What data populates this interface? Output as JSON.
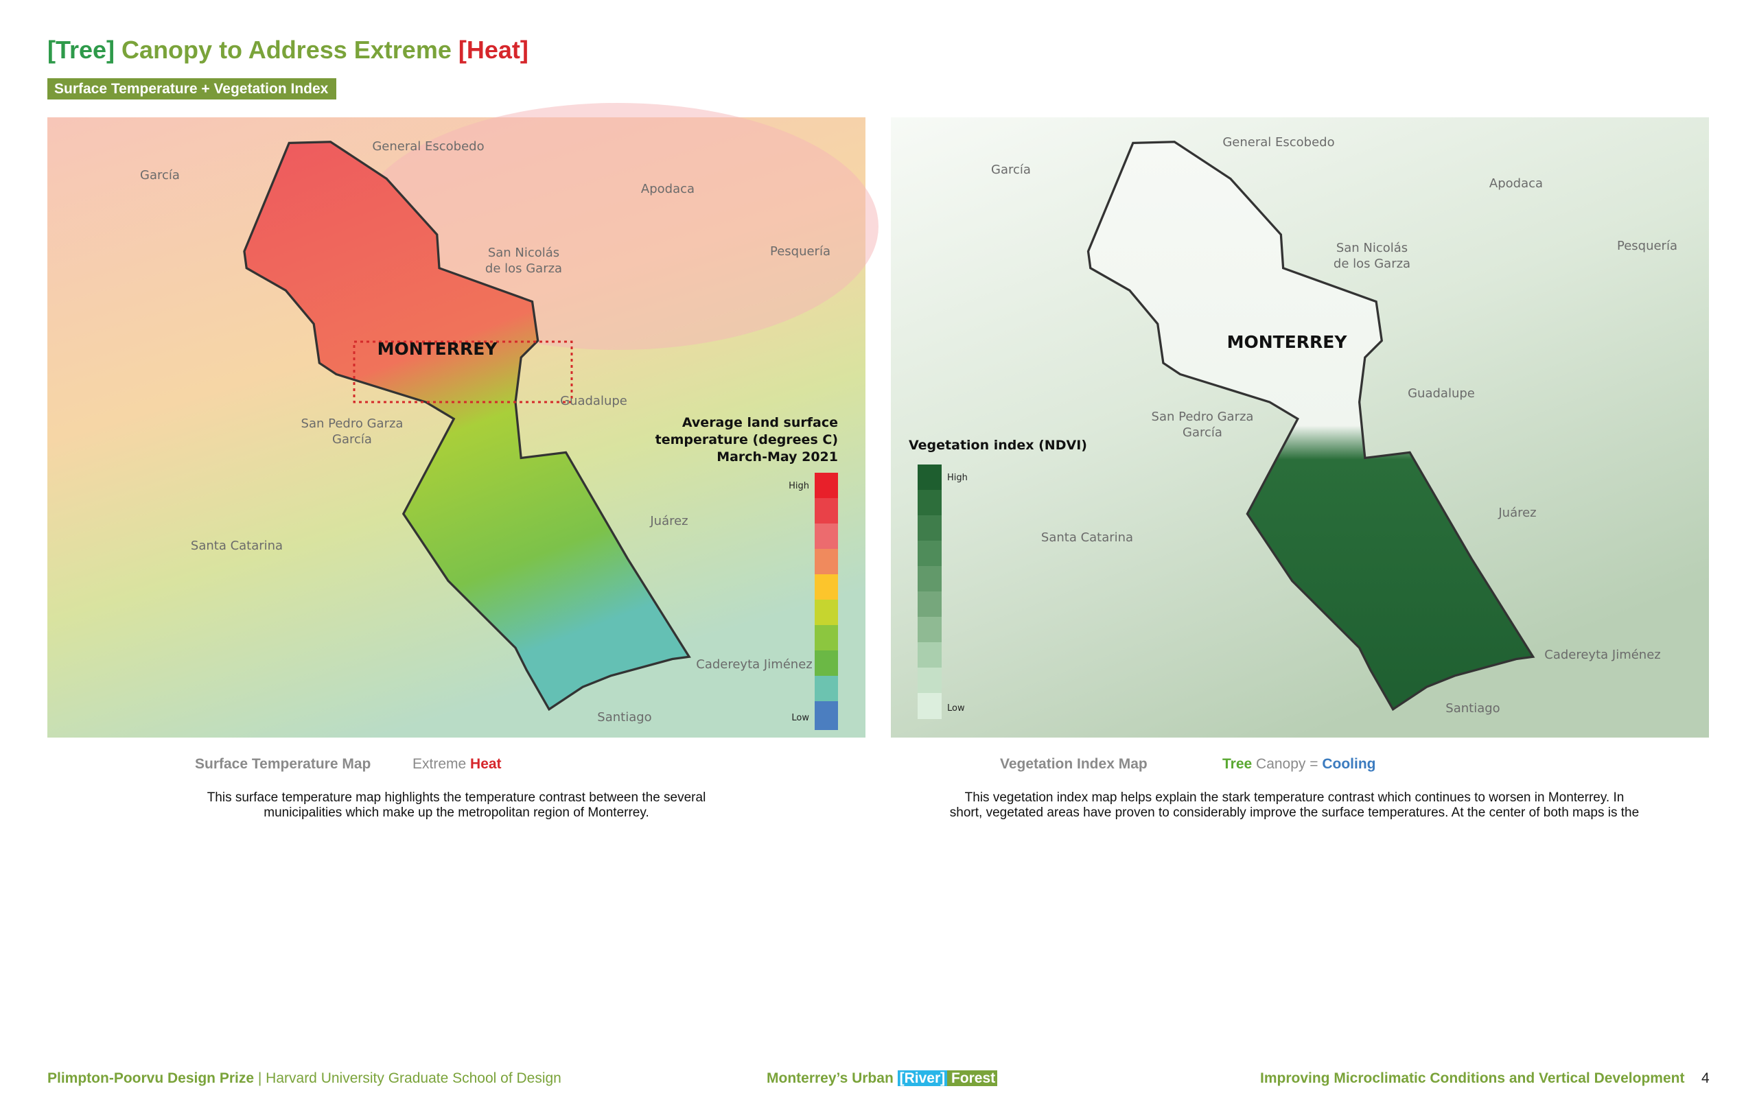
{
  "header": {
    "title": {
      "tree": "[Tree]",
      "middle": " Canopy to Address Extreme ",
      "heat": "[Heat]"
    },
    "tag": "Surface Temperature + Vegetation Index"
  },
  "maps": [
    {
      "labels": {
        "escobedo": "General Escobedo",
        "garcia": "García",
        "apodaca": "Apodaca",
        "san_nicolas": [
          "San Nicolás",
          "de los Garza"
        ],
        "pesqueria": "Pesquería",
        "monterrey": "MONTERREY",
        "guadalupe": "Guadalupe",
        "san_pedro": [
          "San Pedro Garza",
          "García"
        ],
        "juarez": "Juárez",
        "santa_catarina": "Santa Catarina",
        "cadereyta": "Cadereyta Jiménez",
        "santiago": "Santiago"
      },
      "legend": {
        "title": [
          "Average land surface",
          "temperature (degrees C)",
          "March-May 2021"
        ],
        "high": "High",
        "low": "Low"
      },
      "caption": {
        "name": "Surface Temperature Map",
        "extra": "Extreme ",
        "emphasis": "Heat"
      },
      "description": [
        "This surface temperature map highlights the temperature contrast between the several",
        "municipalities which make up the metropolitan region of Monterrey."
      ]
    },
    {
      "labels": {
        "escobedo": "General Escobedo",
        "garcia": "García",
        "apodaca": "Apodaca",
        "san_nicolas": [
          "San Nicolás",
          "de los Garza"
        ],
        "pesqueria": "Pesquería",
        "monterrey": "MONTERREY",
        "guadalupe": "Guadalupe",
        "san_pedro": [
          "San Pedro Garza",
          "García"
        ],
        "juarez": "Juárez",
        "santa_catarina": "Santa Catarina",
        "cadereyta": "Cadereyta Jiménez",
        "santiago": "Santiago"
      },
      "legend": {
        "title": [
          "Vegetation index (NDVI)"
        ],
        "high": "High",
        "low": "Low"
      },
      "caption": {
        "name": "Vegetation Index Map",
        "tree": "Tree",
        "equals": " Canopy = ",
        "cooling": "Cooling"
      },
      "description": [
        "This vegetation index map helps explain the stark temperature contrast which continues to worsen in Monterrey. In",
        "short, vegetated areas have proven to considerably improve the surface temperatures. At the center of both maps is the"
      ]
    }
  ],
  "footer": {
    "prize": "Plimpton-Poorvu Design Prize",
    "school": " | Harvard University Graduate School of Design",
    "project": "Monterrey’s Urban ",
    "river": "[River]",
    "forest": " Forest",
    "subtitle": "Improving Microclimatic Conditions and Vertical Development",
    "page": "4"
  }
}
